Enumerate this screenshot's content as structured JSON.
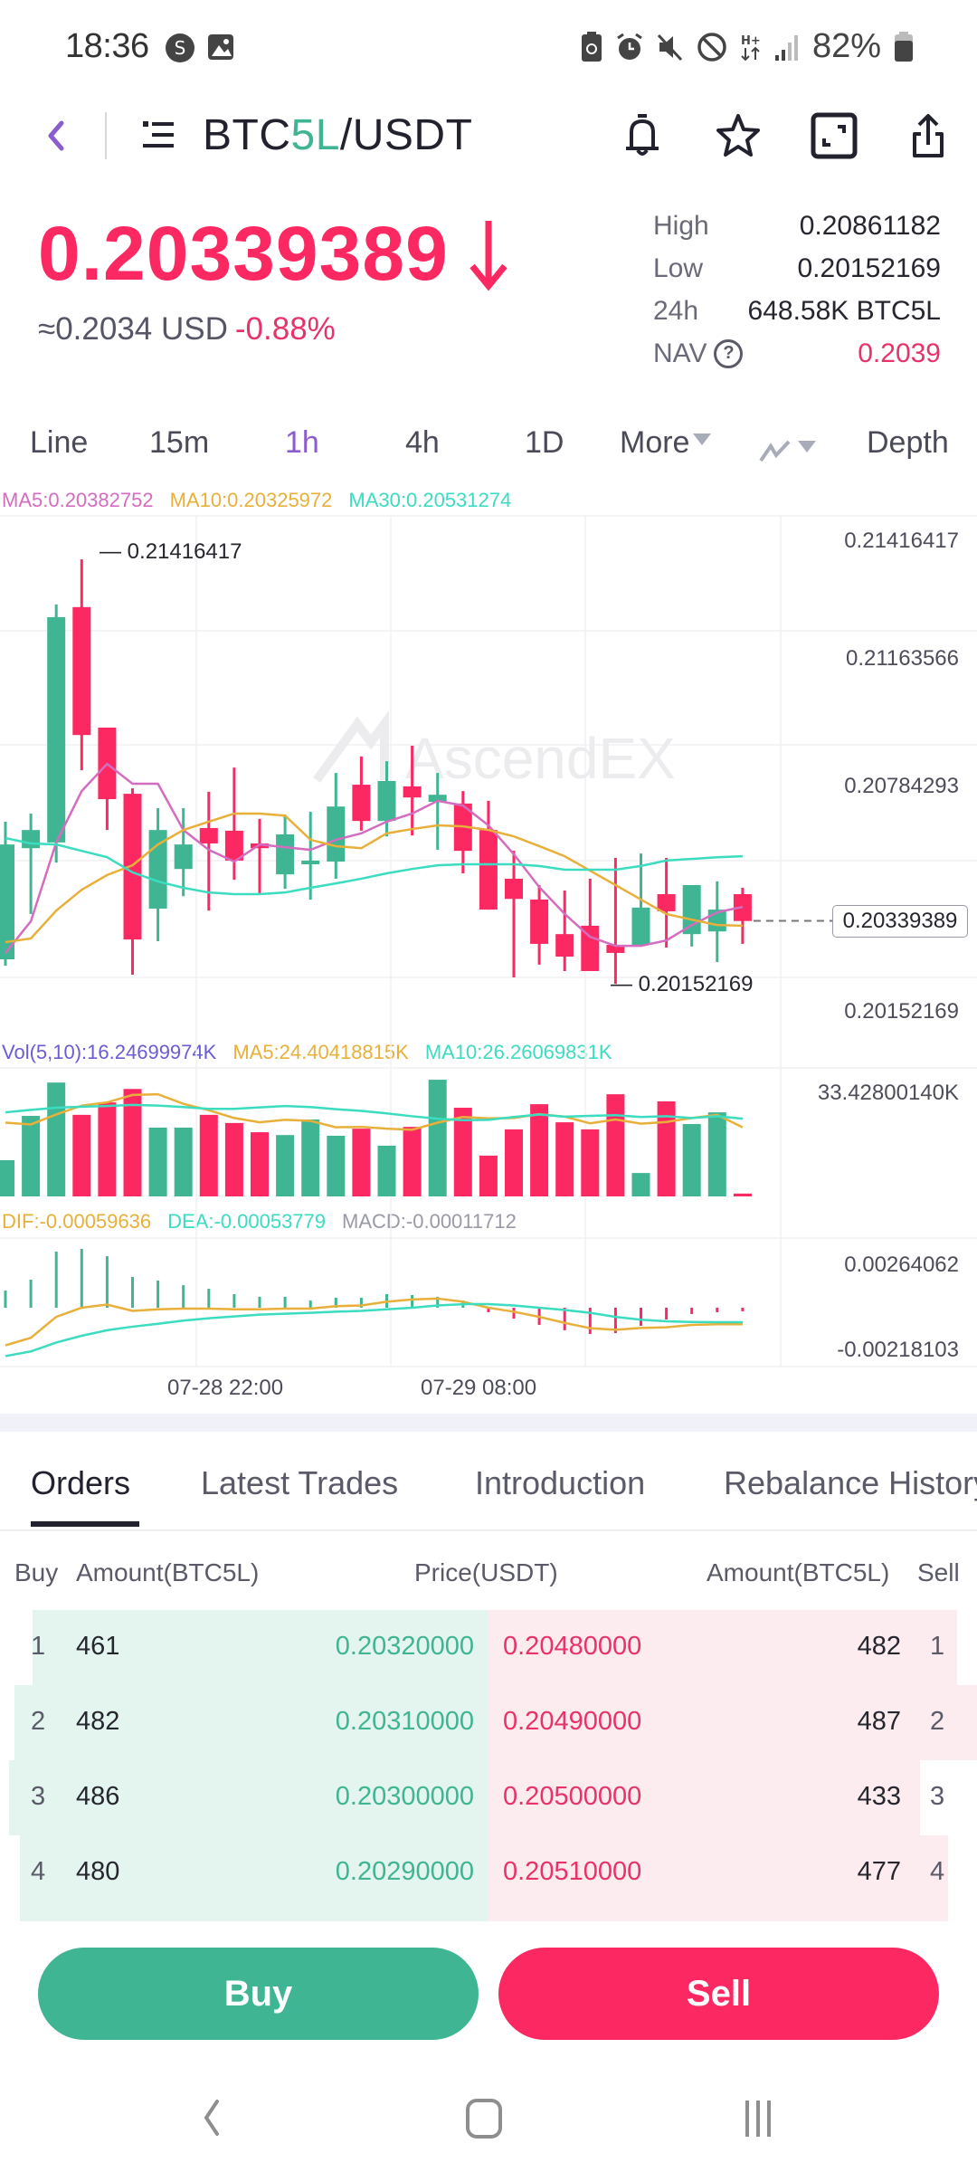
{
  "status_bar": {
    "time": "18:36",
    "left_icons": [
      "s-app-icon",
      "gallery-icon"
    ],
    "right_icons": [
      "battery-saver-icon",
      "alarm-icon",
      "mute-icon",
      "do-not-disturb-icon",
      "h-plus-data-icon",
      "signal-icon"
    ],
    "battery": "82%"
  },
  "header": {
    "pair_base_prefix": "BTC",
    "pair_base_highlight": "5L",
    "pair_quote": "/USDT",
    "icons": [
      "bell-icon",
      "star-icon",
      "fullscreen-icon",
      "share-icon"
    ]
  },
  "ticker": {
    "last_price": "0.20339389",
    "direction": "down",
    "usd_value": "≈0.2034 USD",
    "change_pct": "-0.88%",
    "stats": [
      {
        "label": "High",
        "value": "0.20861182"
      },
      {
        "label": "Low",
        "value": "0.20152169"
      },
      {
        "label": "24h",
        "value": "648.58K BTC5L"
      },
      {
        "label": "NAV",
        "value": "0.2039",
        "has_help": true
      }
    ]
  },
  "intervals": {
    "items": [
      "Line",
      "15m",
      "1h",
      "4h",
      "1D",
      "More"
    ],
    "active": "1h",
    "indicator_menu": "indicator-icon",
    "depth": "Depth"
  },
  "chart_legends": {
    "ma5": "MA5:0.20382752",
    "ma10": "MA10:0.20325972",
    "ma30": "MA30:0.20531274",
    "vol": "Vol(5,10):16.24699974K",
    "vol_ma5": "MA5:24.40418815K",
    "vol_ma10": "MA10:26.26069831K",
    "dif": "DIF:-0.00059636",
    "dea": "DEA:-0.00053779",
    "macd": "MACD:-0.00011712"
  },
  "colors": {
    "up": "#3fb593",
    "down": "#fc2862",
    "ma5": "#d46cc0",
    "ma10": "#e8b03a",
    "ma30": "#3bdcc0",
    "vol_label": "#6a5cd6",
    "accent": "#8a5cd0"
  },
  "watermark": "AscendEX",
  "chart_data": [
    {
      "type": "candlestick",
      "title": "BTC5L/USDT 1h",
      "price_axis_labels": [
        "0.21416417",
        "0.21163566",
        "0.20784293",
        "0.20152169"
      ],
      "last_price_tag": "0.20339389",
      "max_marker": "0.21416417",
      "min_marker": "0.20152169",
      "ylim": [
        0.20152169,
        0.21416417
      ],
      "candles": [
        {
          "o": 0.20225,
          "h": 0.20635,
          "l": 0.20206,
          "c": 0.20567
        },
        {
          "o": 0.20556,
          "h": 0.20659,
          "l": 0.2036,
          "c": 0.2061
        },
        {
          "o": 0.20573,
          "h": 0.21282,
          "l": 0.20513,
          "c": 0.21244
        },
        {
          "o": 0.21274,
          "h": 0.21416,
          "l": 0.20788,
          "c": 0.20893
        },
        {
          "o": 0.20915,
          "h": 0.20915,
          "l": 0.2061,
          "c": 0.20702
        },
        {
          "o": 0.20718,
          "h": 0.20734,
          "l": 0.20179,
          "c": 0.20284
        },
        {
          "o": 0.20376,
          "h": 0.20675,
          "l": 0.20279,
          "c": 0.2061
        },
        {
          "o": 0.20494,
          "h": 0.20675,
          "l": 0.20413,
          "c": 0.20567
        },
        {
          "o": 0.20616,
          "h": 0.20724,
          "l": 0.2037,
          "c": 0.2057
        },
        {
          "o": 0.20608,
          "h": 0.20796,
          "l": 0.20462,
          "c": 0.20519
        },
        {
          "o": 0.2057,
          "h": 0.20643,
          "l": 0.20419,
          "c": 0.20556
        },
        {
          "o": 0.20478,
          "h": 0.20656,
          "l": 0.20435,
          "c": 0.20597
        },
        {
          "o": 0.20508,
          "h": 0.20664,
          "l": 0.20403,
          "c": 0.20519
        },
        {
          "o": 0.20516,
          "h": 0.2078,
          "l": 0.20465,
          "c": 0.2068
        },
        {
          "o": 0.20745,
          "h": 0.20829,
          "l": 0.20608,
          "c": 0.20637
        },
        {
          "o": 0.20637,
          "h": 0.20815,
          "l": 0.20591,
          "c": 0.20756
        },
        {
          "o": 0.2074,
          "h": 0.20861,
          "l": 0.20594,
          "c": 0.20707
        },
        {
          "o": 0.20694,
          "h": 0.2078,
          "l": 0.20551,
          "c": 0.20715
        },
        {
          "o": 0.20689,
          "h": 0.20726,
          "l": 0.20481,
          "c": 0.20548
        },
        {
          "o": 0.2061,
          "h": 0.20697,
          "l": 0.20373,
          "c": 0.20373
        },
        {
          "o": 0.20465,
          "h": 0.20548,
          "l": 0.20171,
          "c": 0.20405
        },
        {
          "o": 0.20403,
          "h": 0.20446,
          "l": 0.20209,
          "c": 0.20271
        },
        {
          "o": 0.203,
          "h": 0.2043,
          "l": 0.2019,
          "c": 0.20233
        },
        {
          "o": 0.20325,
          "h": 0.20465,
          "l": 0.2019,
          "c": 0.2019
        },
        {
          "o": 0.20268,
          "h": 0.20527,
          "l": 0.20152,
          "c": 0.20244
        },
        {
          "o": 0.20268,
          "h": 0.2054,
          "l": 0.20268,
          "c": 0.20379
        },
        {
          "o": 0.20419,
          "h": 0.20527,
          "l": 0.2026,
          "c": 0.20368
        },
        {
          "o": 0.203,
          "h": 0.20446,
          "l": 0.20263,
          "c": 0.20446
        },
        {
          "o": 0.20308,
          "h": 0.20457,
          "l": 0.20217,
          "c": 0.20373
        },
        {
          "o": 0.20419,
          "h": 0.20438,
          "l": 0.20271,
          "c": 0.20339
        }
      ],
      "series": [
        {
          "name": "MA5",
          "values": [
            0.20244,
            0.20338,
            0.20573,
            0.20726,
            0.20807,
            0.20748,
            0.20748,
            0.2061,
            0.20551,
            0.20516,
            0.20567,
            0.20559,
            0.20551,
            0.20581,
            0.206,
            0.20635,
            0.20659,
            0.20697,
            0.20683,
            0.20624,
            0.20538,
            0.2044,
            0.2036,
            0.20292,
            0.20265,
            0.20265,
            0.20281,
            0.20327,
            0.20365,
            0.20381
          ]
        },
        {
          "name": "MA10",
          "values": [
            0.20276,
            0.20287,
            0.2037,
            0.20432,
            0.20476,
            0.20505,
            0.20567,
            0.2061,
            0.20635,
            0.20659,
            0.20659,
            0.20653,
            0.20581,
            0.20562,
            0.20556,
            0.206,
            0.20613,
            0.20624,
            0.20621,
            0.2061,
            0.20591,
            0.20562,
            0.20532,
            0.20489,
            0.20446,
            0.20403,
            0.2036,
            0.20343,
            0.20327,
            0.20325
          ]
        },
        {
          "name": "MA30",
          "values": [
            0.20586,
            0.2057,
            0.20567,
            0.20548,
            0.20529,
            0.20484,
            0.20457,
            0.20438,
            0.20424,
            0.20419,
            0.20419,
            0.20424,
            0.20438,
            0.20451,
            0.20465,
            0.20481,
            0.20494,
            0.20505,
            0.20508,
            0.20508,
            0.20508,
            0.20503,
            0.20492,
            0.20492,
            0.20492,
            0.20503,
            0.20519,
            0.20524,
            0.20529,
            0.20532
          ]
        }
      ],
      "x_tick_labels": [
        {
          "index": 9,
          "label": "07-28 22:00"
        },
        {
          "index": 19,
          "label": "07-29 08:00"
        }
      ],
      "grid": true
    },
    {
      "type": "bar",
      "title": "Volume",
      "ylabel_max": "33.42800140K",
      "values_k": [
        10.2,
        22.7,
        32.1,
        23.0,
        26.5,
        30.3,
        19.4,
        19.4,
        23.0,
        20.7,
        18.1,
        17.3,
        21.7,
        17.1,
        19.1,
        14.3,
        19.6,
        32.9,
        25.0,
        11.5,
        18.9,
        26.0,
        20.9,
        18.9,
        28.8,
        6.6,
        26.8,
        20.4,
        23.7,
        0.8
      ],
      "colors": [
        "up",
        "up",
        "up",
        "down",
        "down",
        "down",
        "up",
        "up",
        "down",
        "down",
        "down",
        "up",
        "up",
        "up",
        "down",
        "up",
        "down",
        "up",
        "down",
        "down",
        "down",
        "down",
        "down",
        "down",
        "down",
        "up",
        "down",
        "up",
        "up",
        "down"
      ],
      "ma5_k": [
        20.8,
        20.3,
        23.1,
        25.6,
        26.5,
        28.6,
        28.8,
        26.1,
        24.3,
        22.1,
        20.9,
        21.6,
        21.3,
        19.5,
        19.6,
        19.1,
        18.8,
        20.8,
        22.4,
        22.0,
        22.1,
        23.2,
        22.5,
        20.6,
        21.7,
        20.5,
        21.0,
        22.1,
        23.0,
        19.5
      ],
      "ma10_k": [
        23.7,
        24.4,
        25.0,
        25.3,
        25.5,
        25.8,
        25.6,
        25.2,
        24.7,
        24.7,
        25.1,
        25.5,
        25.2,
        24.6,
        24.1,
        23.4,
        22.6,
        21.9,
        21.5,
        21.6,
        22.4,
        23.1,
        22.5,
        22.7,
        22.9,
        22.4,
        22.6,
        22.1,
        22.6,
        21.9
      ]
    },
    {
      "type": "bar",
      "title": "MACD",
      "ylabel_max": "0.00264062",
      "ylabel_min": "-0.00218103",
      "macd": [
        0.00077,
        0.00126,
        0.00252,
        0.00264,
        0.00231,
        0.00138,
        0.00122,
        0.00101,
        0.00085,
        0.00061,
        0.00049,
        0.00049,
        0.00032,
        0.00045,
        0.00045,
        0.00061,
        0.00057,
        0.00049,
        0.00032,
        -0.0002,
        -0.00049,
        -0.00077,
        -0.00101,
        -0.00118,
        -0.00114,
        -0.00081,
        -0.00053,
        -0.00028,
        -0.0002,
        -0.00016
      ],
      "dif": [
        -0.00169,
        -0.00135,
        -0.00041,
        0.0,
        0.00014,
        -0.00014,
        -7e-05,
        -4e-05,
        -4e-05,
        -7e-05,
        -7e-05,
        -4e-05,
        -4e-05,
        7e-05,
        0.0001,
        0.00027,
        0.00037,
        0.00041,
        0.00027,
        0.0,
        -0.00018,
        -0.00041,
        -0.00068,
        -0.00092,
        -0.00099,
        -0.00091,
        -0.00088,
        -0.00077,
        -0.00074,
        -0.00074
      ],
      "dea": [
        -0.00217,
        -0.00196,
        -0.00156,
        -0.00126,
        -0.00101,
        -0.00085,
        -0.00072,
        -0.00058,
        -0.00047,
        -0.00039,
        -0.00031,
        -0.00027,
        -0.00023,
        -0.00018,
        -0.00014,
        -7e-05,
        0.0,
        0.0001,
        0.00016,
        0.00016,
        0.0001,
        0.0,
        -0.0001,
        -0.00023,
        -0.00041,
        -0.00054,
        -0.00061,
        -0.00064,
        -0.00065,
        -0.00065
      ]
    }
  ],
  "bottom_tabs": {
    "items": [
      "Orders",
      "Latest Trades",
      "Introduction",
      "Rebalance History"
    ],
    "active": "Orders"
  },
  "order_book": {
    "headers": {
      "buy": "Buy",
      "bid_amount": "Amount(BTC5L)",
      "price": "Price(USDT)",
      "ask_amount": "Amount(BTC5L)",
      "sell": "Sell"
    },
    "rows": [
      {
        "idx": "1",
        "bid_amount": "461",
        "bid_price": "0.20320000",
        "ask_price": "0.20480000",
        "ask_amount": "482",
        "ask_idx": "1"
      },
      {
        "idx": "2",
        "bid_amount": "482",
        "bid_price": "0.20310000",
        "ask_price": "0.20490000",
        "ask_amount": "487",
        "ask_idx": "2"
      },
      {
        "idx": "3",
        "bid_amount": "486",
        "bid_price": "0.20300000",
        "ask_price": "0.20500000",
        "ask_amount": "433",
        "ask_idx": "3"
      },
      {
        "idx": "4",
        "bid_amount": "480",
        "bid_price": "0.20290000",
        "ask_price": "0.20510000",
        "ask_amount": "477",
        "ask_idx": "4"
      }
    ]
  },
  "actions": {
    "buy": "Buy",
    "sell": "Sell"
  },
  "nav_bar": [
    "back-icon",
    "home-icon",
    "recents-icon"
  ]
}
